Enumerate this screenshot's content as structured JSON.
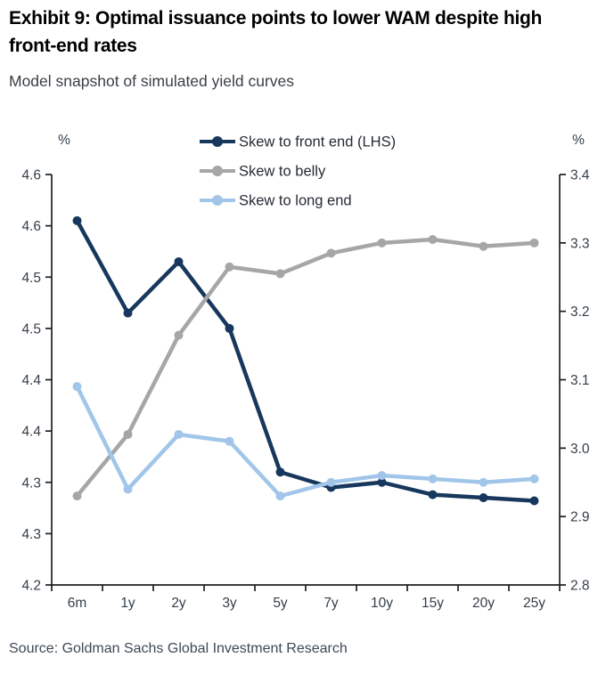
{
  "chart_data": {
    "type": "line",
    "title": "Exhibit 9: Optimal issuance points to lower WAM despite high front-end rates",
    "subtitle": "Model snapshot of simulated yield curves",
    "source": "Source: Goldman Sachs Global Investment Research",
    "categories": [
      "6m",
      "1y",
      "2y",
      "3y",
      "5y",
      "7y",
      "10y",
      "15y",
      "20y",
      "25y"
    ],
    "series": [
      {
        "name": "Skew to front end (LHS)",
        "axis": "left",
        "color": "#17375D",
        "values": [
          4.555,
          4.465,
          4.515,
          4.45,
          4.31,
          4.295,
          4.3,
          4.288,
          4.285,
          4.282
        ]
      },
      {
        "name": "Skew to belly",
        "axis": "right",
        "color": "#A6A6A6",
        "values": [
          2.93,
          3.02,
          3.165,
          3.265,
          3.255,
          3.285,
          3.3,
          3.305,
          3.295,
          3.3
        ]
      },
      {
        "name": "Skew to long end",
        "axis": "right",
        "color": "#A1C6E9",
        "values": [
          3.09,
          2.94,
          3.02,
          3.01,
          2.93,
          2.95,
          2.96,
          2.955,
          2.95,
          2.955
        ]
      }
    ],
    "left_axis": {
      "unit": "%",
      "min": 4.2,
      "max": 4.6,
      "tick_step": 0.05,
      "tick_labels": [
        "4.6",
        "4.6",
        "4.5",
        "4.5",
        "4.4",
        "4.4",
        "4.3",
        "4.3",
        "4.2"
      ]
    },
    "right_axis": {
      "unit": "%",
      "min": 2.8,
      "max": 3.4,
      "tick_step": 0.1,
      "tick_labels": [
        "3.4",
        "3.3",
        "3.2",
        "3.1",
        "3.0",
        "2.9",
        "2.8"
      ]
    },
    "legend": {
      "position": "top-center"
    },
    "grid": false,
    "axis_color": "#1f1f1f"
  }
}
